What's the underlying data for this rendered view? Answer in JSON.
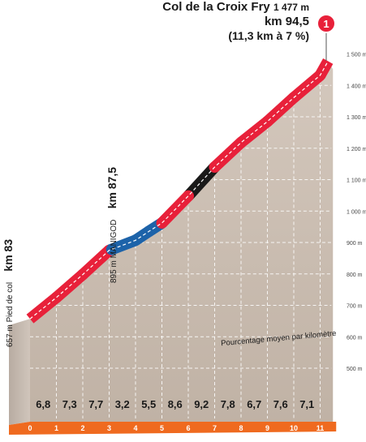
{
  "header": {
    "summit_name": "Col de la Croix Fry",
    "summit_altitude": "1 477 m",
    "summit_km": "km 94,5",
    "summit_detail": "(11,3 km à 7 %)",
    "marker_number": "1"
  },
  "annotations": {
    "start_small": "657 m Pied de col",
    "start_km": "km 83",
    "mid_small": "895 m MANIGOD",
    "mid_km": "km 87,5",
    "legend": "Pourcentage moyen par kilomètre"
  },
  "colors": {
    "road_red": "#e8213a",
    "road_blue": "#1d63a9",
    "road_black": "#1a1a1a",
    "terrain": "#c9bcb0",
    "axis_orange": "#ef6a1f",
    "marker_red": "#e8213a"
  },
  "chart_data": {
    "type": "area",
    "title": "",
    "xlabel": "",
    "ylabel": "",
    "ylim": [
      500,
      1500
    ],
    "xlim": [
      0,
      11.3
    ],
    "y_ticks": [
      "500 m",
      "600 m",
      "700 m",
      "800 m",
      "900 m",
      "1 000 m",
      "1 100 m",
      "1 200 m",
      "1 300 m",
      "1 400 m",
      "1 500 m"
    ],
    "y_tick_values": [
      500,
      600,
      700,
      800,
      900,
      1000,
      1100,
      1200,
      1300,
      1400,
      1500
    ],
    "x_ticks": [
      "0",
      "1",
      "2",
      "3",
      "4",
      "5",
      "6",
      "7",
      "8",
      "9",
      "10",
      "11"
    ],
    "km_segments": [
      {
        "km": 0,
        "gradient": "6,8",
        "color": "red"
      },
      {
        "km": 1,
        "gradient": "7,3",
        "color": "red"
      },
      {
        "km": 2,
        "gradient": "7,7",
        "color": "red"
      },
      {
        "km": 3,
        "gradient": "3,2",
        "color": "blue"
      },
      {
        "km": 4,
        "gradient": "5,5",
        "color": "blue"
      },
      {
        "km": 5,
        "gradient": "8,6",
        "color": "red"
      },
      {
        "km": 6,
        "gradient": "9,2",
        "color": "black"
      },
      {
        "km": 7,
        "gradient": "7,8",
        "color": "red"
      },
      {
        "km": 8,
        "gradient": "6,7",
        "color": "red"
      },
      {
        "km": 9,
        "gradient": "7,6",
        "color": "red"
      },
      {
        "km": 10,
        "gradient": "7,1",
        "color": "red"
      },
      {
        "km": 11,
        "gradient": "",
        "color": "red"
      }
    ],
    "profile": [
      {
        "x": 0,
        "y": 657
      },
      {
        "x": 1,
        "y": 725
      },
      {
        "x": 2,
        "y": 798
      },
      {
        "x": 3,
        "y": 875
      },
      {
        "x": 3.1,
        "y": 878
      },
      {
        "x": 4,
        "y": 907
      },
      {
        "x": 4.5,
        "y": 935
      },
      {
        "x": 5,
        "y": 962
      },
      {
        "x": 6,
        "y": 1048
      },
      {
        "x": 7,
        "y": 1140
      },
      {
        "x": 8,
        "y": 1218
      },
      {
        "x": 9,
        "y": 1285
      },
      {
        "x": 10,
        "y": 1361
      },
      {
        "x": 11,
        "y": 1432
      },
      {
        "x": 11.3,
        "y": 1477
      }
    ]
  }
}
